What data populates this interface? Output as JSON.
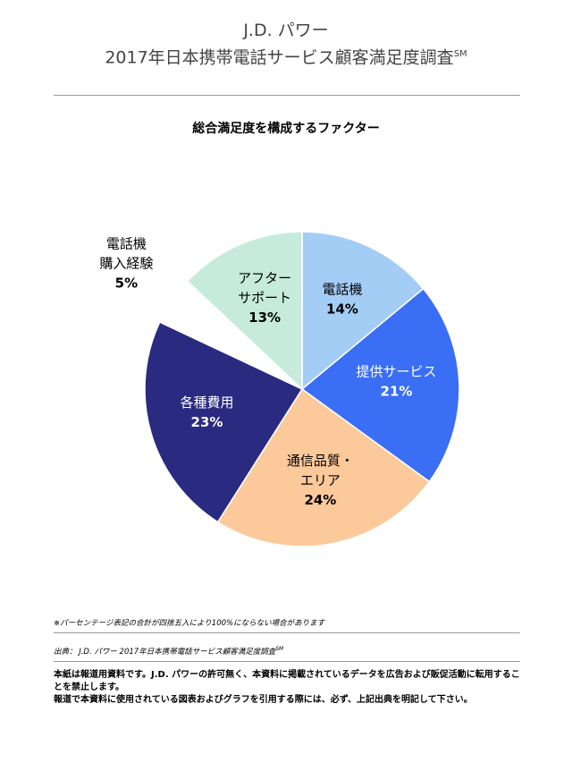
{
  "header": {
    "brand": "J.D. パワー",
    "title": "2017年日本携帯電話サービス顧客満足度調査",
    "title_sup": "SM"
  },
  "chart_data": {
    "type": "pie",
    "title": "総合満足度を構成するファクター",
    "start_angle_deg": 0,
    "direction": "clockwise",
    "slices": [
      {
        "label_lines": [
          "電話機"
        ],
        "label": "電話機",
        "value": 14,
        "value_label": "14%",
        "color": "#a4cdf6",
        "label_color": "#000000"
      },
      {
        "label_lines": [
          "提供サービス"
        ],
        "label": "提供サービス",
        "value": 21,
        "value_label": "21%",
        "color": "#3a6ef5",
        "label_color": "#ffffff"
      },
      {
        "label_lines": [
          "通信品質・",
          "エリア"
        ],
        "label": "通信品質・エリア",
        "value": 24,
        "value_label": "24%",
        "color": "#fcc99b",
        "label_color": "#000000"
      },
      {
        "label_lines": [
          "各種費用"
        ],
        "label": "各種費用",
        "value": 23,
        "value_label": "23%",
        "color": "#2a2a80",
        "label_color": "#ffffff"
      },
      {
        "label_lines": [
          "電話機",
          "購入経験"
        ],
        "label": "電話機購入経験",
        "value": 5,
        "value_label": "5%",
        "color": "#ffffff",
        "label_color": "#000000",
        "label_outside": true
      },
      {
        "label_lines": [
          "アフター",
          "サポート"
        ],
        "label": "アフターサポート",
        "value": 13,
        "value_label": "13%",
        "color": "#c6ebdc",
        "label_color": "#000000"
      }
    ]
  },
  "footer": {
    "note": "※パーセンテージ表記の合計が四捨五入により100%にならない場合があります",
    "source": "出典： J.D. パワー 2017年日本携帯電話サービス顧客満足度調査",
    "source_sup": "SM",
    "disclaimer_1": "本紙は報道用資料です。J.D. パワーの許可無く、本資料に掲載されているデータを広告および販促活動に転用することを禁止します。",
    "disclaimer_2": "報道で本資料に使用されている図表およびグラフを引用する際には、必ず、上記出典を明記して下さい。"
  }
}
